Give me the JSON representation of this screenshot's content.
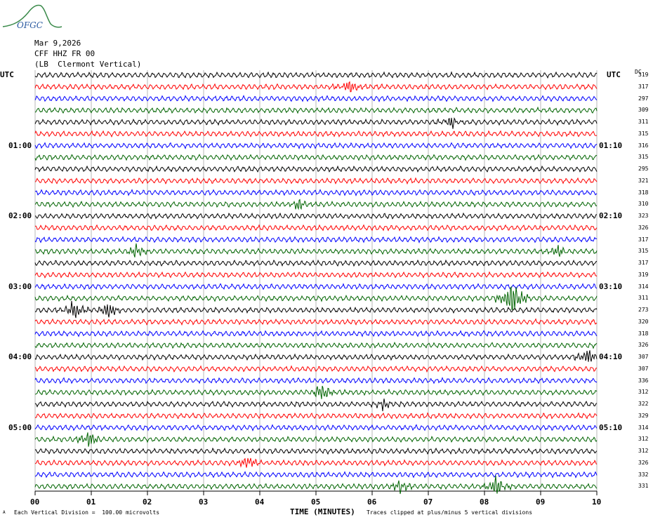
{
  "logo_text": "OFGC",
  "header": {
    "date": "Mar 9,2026",
    "station": "CFF HHZ FR 00",
    "location": "(LB  Clermont Vertical)"
  },
  "left_corner": "UTC",
  "right_corner": "UTC",
  "dc_header": "DC",
  "footer": {
    "scale_mark": "A",
    "scale_note": "Each Vertical Division =  100.00 microvolts",
    "xlabel": "TIME (MINUTES)",
    "clip_note": "Traces clipped at plus/minus 5 vertical divisions"
  },
  "colors": {
    "series": [
      "#000000",
      "#ff0000",
      "#0000ff",
      "#006400"
    ],
    "grid": "#888888"
  },
  "chart_data": {
    "type": "line",
    "xlabel": "TIME (MINUTES)",
    "xlim": [
      0,
      10
    ],
    "x_ticks": [
      "00",
      "01",
      "02",
      "03",
      "04",
      "05",
      "06",
      "07",
      "08",
      "09",
      "10"
    ],
    "left_time_labels": [
      {
        "row": 6,
        "text": "01:00"
      },
      {
        "row": 12,
        "text": "02:00"
      },
      {
        "row": 18,
        "text": "03:00"
      },
      {
        "row": 24,
        "text": "04:00"
      },
      {
        "row": 30,
        "text": "05:00"
      }
    ],
    "right_time_labels": [
      {
        "row": 6,
        "text": "01:10"
      },
      {
        "row": 12,
        "text": "02:10"
      },
      {
        "row": 18,
        "text": "03:10"
      },
      {
        "row": 24,
        "text": "04:10"
      },
      {
        "row": 30,
        "text": "05:10"
      }
    ],
    "dc_offsets": [
      319,
      317,
      297,
      309,
      311,
      315,
      316,
      315,
      295,
      321,
      318,
      310,
      323,
      326,
      317,
      315,
      317,
      319,
      314,
      311,
      273,
      320,
      318,
      326,
      307,
      307,
      336,
      312,
      322,
      329,
      314,
      312,
      312,
      326,
      332,
      331
    ],
    "events": [
      {
        "row": 1,
        "minute": 5.6,
        "amp": 1.2
      },
      {
        "row": 4,
        "minute": 7.4,
        "amp": 1.0
      },
      {
        "row": 11,
        "minute": 4.7,
        "amp": 1.0
      },
      {
        "row": 15,
        "minute": 1.8,
        "amp": 1.0
      },
      {
        "row": 15,
        "minute": 9.3,
        "amp": 1.0
      },
      {
        "row": 19,
        "minute": 8.5,
        "amp": 4.0
      },
      {
        "row": 20,
        "minute": 0.7,
        "amp": 1.5
      },
      {
        "row": 20,
        "minute": 1.3,
        "amp": 1.3
      },
      {
        "row": 24,
        "minute": 9.85,
        "amp": 1.5
      },
      {
        "row": 27,
        "minute": 5.1,
        "amp": 1.4
      },
      {
        "row": 28,
        "minute": 6.2,
        "amp": 1.0
      },
      {
        "row": 31,
        "minute": 0.95,
        "amp": 1.3
      },
      {
        "row": 33,
        "minute": 3.8,
        "amp": 1.0
      },
      {
        "row": 35,
        "minute": 8.2,
        "amp": 1.8
      },
      {
        "row": 35,
        "minute": 6.5,
        "amp": 1.0
      }
    ]
  }
}
